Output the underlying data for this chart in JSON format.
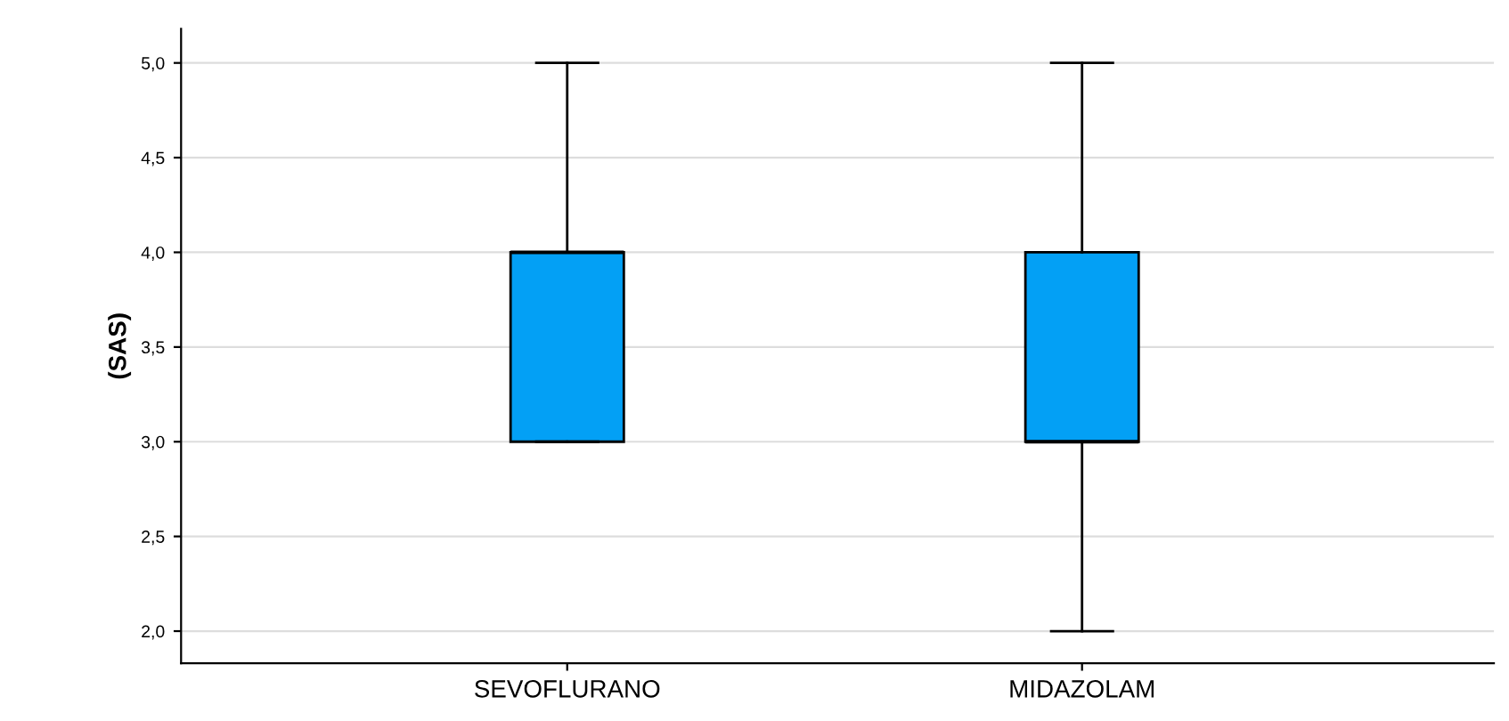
{
  "chart_data": {
    "type": "box",
    "ylabel": "(SAS)",
    "categories": [
      "SEVOFLURANO",
      "MIDAZOLAM"
    ],
    "boxes": [
      {
        "low": 3.0,
        "q1": 3.0,
        "median": 4.0,
        "q3": 4.0,
        "high": 5.0
      },
      {
        "low": 2.0,
        "q1": 3.0,
        "median": 3.0,
        "q3": 4.0,
        "high": 5.0
      }
    ],
    "color": "#03a0f5",
    "ylim": [
      1.83,
      5.18
    ],
    "yticks": [
      {
        "value": 2.0,
        "label": "2,0"
      },
      {
        "value": 2.5,
        "label": "2,5"
      },
      {
        "value": 3.0,
        "label": "3,0"
      },
      {
        "value": 3.5,
        "label": "3,5"
      },
      {
        "value": 4.0,
        "label": "4,0"
      },
      {
        "value": 4.5,
        "label": "4,5"
      },
      {
        "value": 5.0,
        "label": "5,0"
      }
    ],
    "grid": "y"
  }
}
